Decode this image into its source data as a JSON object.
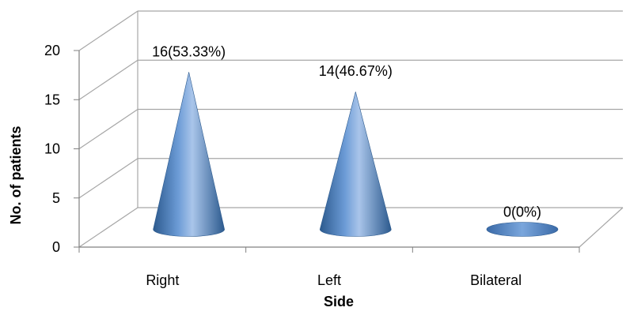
{
  "chart_data": {
    "type": "bar",
    "style": "3d-cone",
    "categories": [
      "Right",
      "Left",
      "Bilateral"
    ],
    "values": [
      16,
      14,
      0
    ],
    "data_labels": [
      "16(53.33%)",
      "14(46.67%)",
      "0(0%)"
    ],
    "xlabel": "Side",
    "ylabel": "No. of patients",
    "ylim": [
      0,
      20
    ],
    "yticks": [
      "0",
      "5",
      "10",
      "15",
      "20"
    ],
    "grid": true,
    "legend": "none",
    "colors": {
      "cone": "#4f81bd",
      "cone_dark": "#2c5a8e",
      "cone_light": "#a9c5ea",
      "grid": "#a6a6a6",
      "axis": "#808080"
    }
  }
}
